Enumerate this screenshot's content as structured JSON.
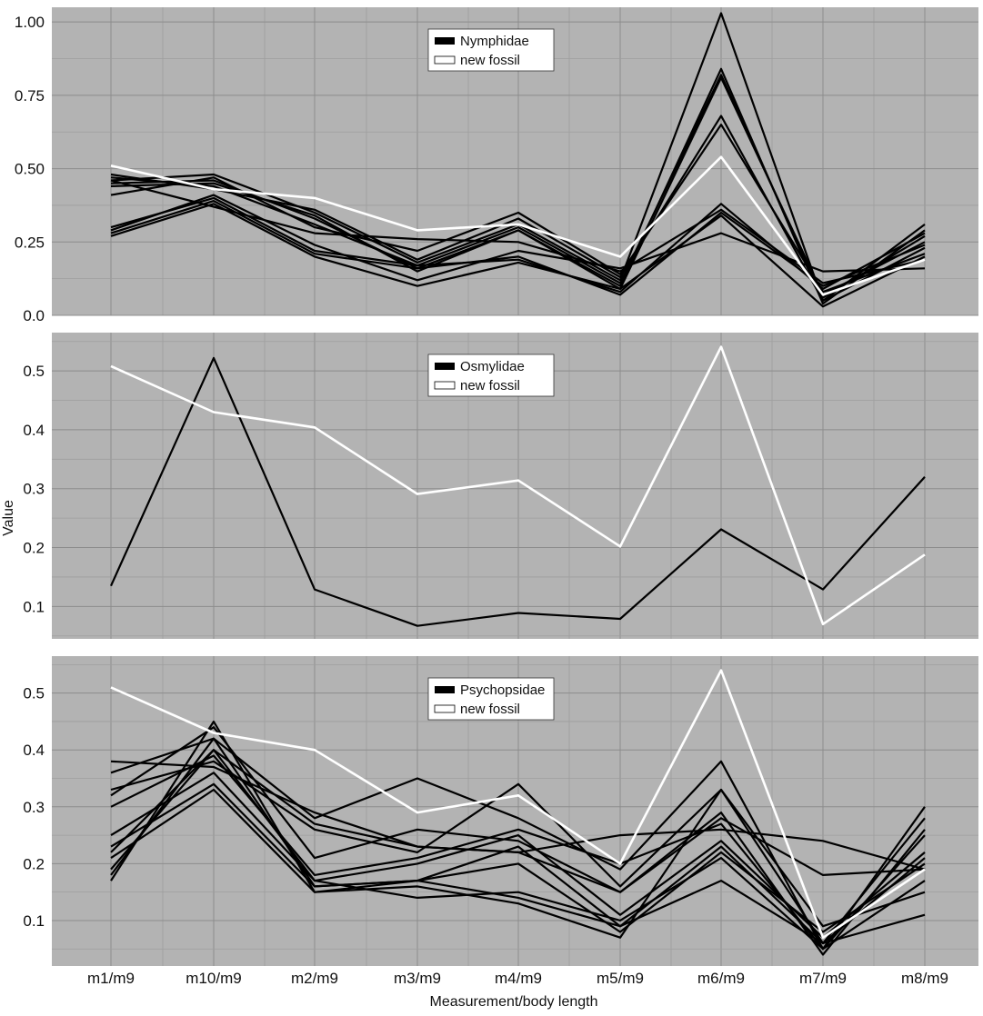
{
  "figure": {
    "ylabel": "Value",
    "xlabel": "Measurement/body length",
    "categories": [
      "m1/m9",
      "m10/m9",
      "m2/m9",
      "m3/m9",
      "m4/m9",
      "m5/m9",
      "m6/m9",
      "m7/m9",
      "m8/m9"
    ]
  },
  "colors": {
    "panel_background": "#b3b3b3",
    "grid": "#8c8c8c",
    "family_line": "#000000",
    "fossil_line": "#ffffff"
  },
  "chart_data": [
    {
      "type": "line",
      "categories": [
        "m1/m9",
        "m10/m9",
        "m2/m9",
        "m3/m9",
        "m4/m9",
        "m5/m9",
        "m6/m9",
        "m7/m9",
        "m8/m9"
      ],
      "ylim": [
        0,
        1.05
      ],
      "yticks": [
        "0.0",
        "0.25",
        "0.50",
        "0.75",
        "1.00"
      ],
      "ytick_values": [
        0,
        0.25,
        0.5,
        0.75,
        1.0
      ],
      "grid": true,
      "legend": {
        "placement": "top-center",
        "entries": [
          "Nymphidae",
          "new fossil"
        ]
      },
      "series": [
        {
          "name": "Nymphidae",
          "values": [
            0.46,
            0.48,
            0.35,
            0.18,
            0.31,
            0.12,
            1.03,
            0.05,
            0.31
          ]
        },
        {
          "name": "Nymphidae",
          "values": [
            0.45,
            0.46,
            0.33,
            0.16,
            0.29,
            0.1,
            0.84,
            0.04,
            0.29
          ]
        },
        {
          "name": "Nymphidae",
          "values": [
            0.47,
            0.44,
            0.31,
            0.17,
            0.3,
            0.11,
            0.82,
            0.06,
            0.27
          ]
        },
        {
          "name": "Nymphidae",
          "values": [
            0.44,
            0.45,
            0.34,
            0.15,
            0.29,
            0.09,
            0.81,
            0.07,
            0.25
          ]
        },
        {
          "name": "Nymphidae",
          "values": [
            0.48,
            0.43,
            0.36,
            0.19,
            0.33,
            0.13,
            0.68,
            0.05,
            0.23
          ]
        },
        {
          "name": "Nymphidae",
          "values": [
            0.41,
            0.47,
            0.3,
            0.22,
            0.35,
            0.14,
            0.65,
            0.08,
            0.21
          ]
        },
        {
          "name": "Nymphidae",
          "values": [
            0.3,
            0.4,
            0.22,
            0.17,
            0.19,
            0.08,
            0.38,
            0.09,
            0.28
          ]
        },
        {
          "name": "Nymphidae",
          "values": [
            0.28,
            0.39,
            0.21,
            0.16,
            0.2,
            0.07,
            0.35,
            0.1,
            0.24
          ]
        },
        {
          "name": "Nymphidae",
          "values": [
            0.27,
            0.38,
            0.2,
            0.1,
            0.18,
            0.09,
            0.34,
            0.03,
            0.2
          ]
        },
        {
          "name": "Nymphidae",
          "values": [
            0.29,
            0.41,
            0.24,
            0.12,
            0.22,
            0.16,
            0.28,
            0.15,
            0.16
          ]
        },
        {
          "name": "Nymphidae",
          "values": [
            0.46,
            0.37,
            0.28,
            0.26,
            0.25,
            0.15,
            0.36,
            0.11,
            0.19
          ]
        },
        {
          "name": "new fossil",
          "values": [
            0.51,
            0.43,
            0.4,
            0.29,
            0.31,
            0.2,
            0.54,
            0.07,
            0.19
          ]
        }
      ]
    },
    {
      "type": "line",
      "categories": [
        "m1/m9",
        "m10/m9",
        "m2/m9",
        "m3/m9",
        "m4/m9",
        "m5/m9",
        "m6/m9",
        "m7/m9",
        "m8/m9"
      ],
      "ylim": [
        0.045,
        0.565
      ],
      "yticks": [
        "0.1",
        "0.2",
        "0.3",
        "0.4",
        "0.5"
      ],
      "ytick_values": [
        0.1,
        0.2,
        0.3,
        0.4,
        0.5
      ],
      "grid": true,
      "legend": {
        "placement": "top-center",
        "entries": [
          "Osmylidae",
          "new fossil"
        ]
      },
      "series": [
        {
          "name": "Osmylidae",
          "values": [
            0.135,
            0.522,
            0.129,
            0.067,
            0.089,
            0.079,
            0.231,
            0.129,
            0.32
          ]
        },
        {
          "name": "new fossil",
          "values": [
            0.508,
            0.43,
            0.404,
            0.291,
            0.314,
            0.202,
            0.541,
            0.07,
            0.188
          ]
        }
      ]
    },
    {
      "type": "line",
      "categories": [
        "m1/m9",
        "m10/m9",
        "m2/m9",
        "m3/m9",
        "m4/m9",
        "m5/m9",
        "m6/m9",
        "m7/m9",
        "m8/m9"
      ],
      "ylim": [
        0.02,
        0.565
      ],
      "yticks": [
        "0.1",
        "0.2",
        "0.3",
        "0.4",
        "0.5"
      ],
      "ytick_values": [
        0.1,
        0.2,
        0.3,
        0.4,
        0.5
      ],
      "grid": true,
      "legend": {
        "placement": "top-center",
        "entries": [
          "Psychopsidae",
          "new fossil"
        ]
      },
      "series": [
        {
          "name": "Psychopsidae",
          "values": [
            0.38,
            0.37,
            0.29,
            0.23,
            0.22,
            0.25,
            0.26,
            0.24,
            0.19
          ]
        },
        {
          "name": "Psychopsidae",
          "values": [
            0.36,
            0.42,
            0.28,
            0.35,
            0.28,
            0.19,
            0.38,
            0.05,
            0.3
          ]
        },
        {
          "name": "Psychopsidae",
          "values": [
            0.33,
            0.38,
            0.26,
            0.22,
            0.34,
            0.16,
            0.33,
            0.06,
            0.28
          ]
        },
        {
          "name": "Psychopsidae",
          "values": [
            0.32,
            0.44,
            0.21,
            0.26,
            0.24,
            0.15,
            0.29,
            0.04,
            0.26
          ]
        },
        {
          "name": "Psychopsidae",
          "values": [
            0.3,
            0.39,
            0.18,
            0.21,
            0.26,
            0.2,
            0.27,
            0.05,
            0.25
          ]
        },
        {
          "name": "Psychopsidae",
          "values": [
            0.25,
            0.36,
            0.17,
            0.2,
            0.25,
            0.11,
            0.24,
            0.07,
            0.22
          ]
        },
        {
          "name": "Psychopsidae",
          "values": [
            0.23,
            0.34,
            0.16,
            0.17,
            0.23,
            0.09,
            0.23,
            0.06,
            0.21
          ]
        },
        {
          "name": "Psychopsidae",
          "values": [
            0.21,
            0.33,
            0.15,
            0.17,
            0.2,
            0.08,
            0.22,
            0.08,
            0.2
          ]
        },
        {
          "name": "Psychopsidae",
          "values": [
            0.19,
            0.4,
            0.17,
            0.14,
            0.15,
            0.1,
            0.21,
            0.05,
            0.17
          ]
        },
        {
          "name": "Psychopsidae",
          "values": [
            0.18,
            0.42,
            0.16,
            0.17,
            0.14,
            0.09,
            0.17,
            0.06,
            0.11
          ]
        },
        {
          "name": "Psychopsidae",
          "values": [
            0.17,
            0.45,
            0.15,
            0.16,
            0.13,
            0.07,
            0.33,
            0.09,
            0.15
          ]
        },
        {
          "name": "Psychopsidae",
          "values": [
            0.22,
            0.4,
            0.27,
            0.23,
            0.22,
            0.15,
            0.28,
            0.18,
            0.19
          ]
        },
        {
          "name": "new fossil",
          "values": [
            0.51,
            0.43,
            0.4,
            0.29,
            0.32,
            0.2,
            0.54,
            0.07,
            0.19
          ]
        }
      ]
    }
  ]
}
